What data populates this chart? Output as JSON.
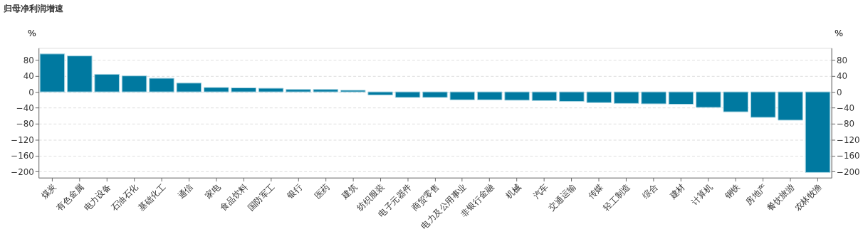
{
  "chart_data": {
    "type": "bar",
    "title": "归母净利润增速",
    "ylabel": "%",
    "y2label": "%",
    "categories": [
      "煤炭",
      "有色金属",
      "电力设备",
      "石油石化",
      "基础化工",
      "通信",
      "家电",
      "食品饮料",
      "国防军工",
      "银行",
      "医药",
      "建筑",
      "纺织服装",
      "电子元器件",
      "商贸零售",
      "电力及公用事业",
      "非银行金融",
      "机械",
      "汽车",
      "交通运输",
      "传媒",
      "轻工制造",
      "综合",
      "建材",
      "计算机",
      "钢铁",
      "房地产",
      "餐饮旅游",
      "农林牧渔"
    ],
    "series": [
      {
        "color": "#0079a0",
        "values": [
          95,
          90,
          44,
          40,
          34,
          22,
          11,
          10,
          9,
          6,
          6,
          4,
          -8,
          -14,
          -14,
          -20,
          -20,
          -21,
          -22,
          -24,
          -27,
          -29,
          -30,
          -31,
          -39,
          -50,
          -64,
          -71,
          -202
        ]
      }
    ],
    "ylim": [
      -215,
      110
    ],
    "yticks": [
      -200,
      -160,
      -120,
      -80,
      -40,
      0,
      40,
      80
    ],
    "y2lim": [
      -215,
      110
    ],
    "y2ticks": [
      -200,
      -160,
      -120,
      -80,
      -40,
      0,
      40,
      80
    ],
    "grid": "y"
  }
}
